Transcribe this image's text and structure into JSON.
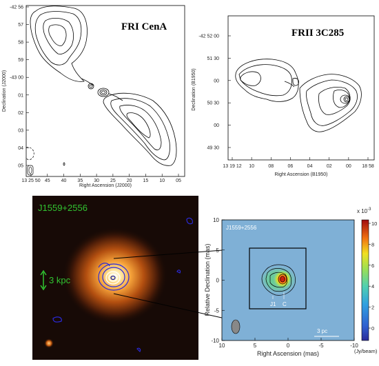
{
  "panel_a": {
    "title": "FRI CenA",
    "xlabel": "Right Ascension (J2000)",
    "ylabel": "Declination (J2000)",
    "xticks": [
      "13 25 50",
      "45",
      "40",
      "35",
      "30",
      "25",
      "20",
      "15",
      "10",
      "05"
    ],
    "yticks": [
      "-42 56",
      "57",
      "58",
      "59",
      "-43 00",
      "01",
      "02",
      "03",
      "04",
      "05"
    ]
  },
  "panel_b": {
    "title": "FRII 3C285",
    "xlabel": "Right Ascension (B1950)",
    "ylabel": "Declination (B1950)",
    "xticks": [
      "13 19 12",
      "10",
      "08",
      "06",
      "04",
      "02",
      "00",
      "18 58"
    ],
    "yticks": [
      "-42 52 00",
      "51 30",
      "00",
      "50 30",
      "00",
      "49 30"
    ]
  },
  "panel_c": {
    "label": "J1559+2556",
    "scale_label": "3 kpc"
  },
  "panel_d": {
    "label": "J1559+2556",
    "xlabel": "Right Ascension (mas)",
    "ylabel": "Relative Declination (mas)",
    "xticks": [
      "10",
      "5",
      "0",
      "-5",
      "-10"
    ],
    "yticks": [
      "10",
      "5",
      "0",
      "-5",
      "-10"
    ],
    "component_labels": [
      "J1",
      "C"
    ],
    "scale_label": "3 pc",
    "colorbar_exp": "x 10",
    "colorbar_exp_sup": "-3",
    "colorbar_ticks": [
      "10",
      "8",
      "6",
      "4",
      "2",
      "0"
    ],
    "colorbar_unit": "(Jy/beam)"
  },
  "colors": {
    "contour_black": "#000000",
    "contour_blue": "#2a2ad8",
    "label_green": "#31c431",
    "galaxy_core": "#fff6d8",
    "galaxy_halo": "#e06a10",
    "map_background": "#7fb0d6"
  }
}
